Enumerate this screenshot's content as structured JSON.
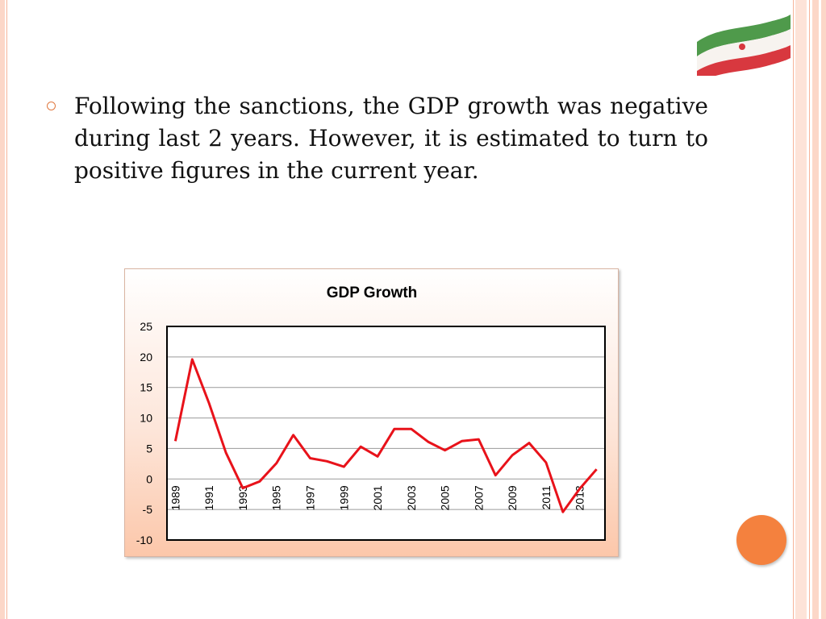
{
  "slide": {
    "bullet_text": "Following the sanctions, the GDP growth was negative during last 2 years. However, it is estimated to turn to positive figures in the current year."
  },
  "decor": {
    "flag_icon": "iran-flag-icon",
    "accent_color": "#f4813e",
    "bullet_color": "#e0783f"
  },
  "chart_data": {
    "type": "line",
    "title": "GDP Growth",
    "xlabel": "",
    "ylabel": "",
    "x": [
      1989,
      1990,
      1991,
      1992,
      1993,
      1994,
      1995,
      1996,
      1997,
      1998,
      1999,
      2000,
      2001,
      2002,
      2003,
      2004,
      2005,
      2006,
      2007,
      2008,
      2009,
      2010,
      2011,
      2012,
      2013,
      2014
    ],
    "x_tick_labels": [
      "1989",
      "1991",
      "1993",
      "1995",
      "1997",
      "1999",
      "2001",
      "2003",
      "2005",
      "2007",
      "2009",
      "2011",
      "2013"
    ],
    "series": [
      {
        "values": [
          6.2,
          19.6,
          12.4,
          4.3,
          -1.5,
          -0.4,
          2.6,
          7.2,
          3.4,
          2.9,
          2.0,
          5.3,
          3.7,
          8.2,
          8.2,
          6.1,
          4.7,
          6.2,
          6.5,
          0.6,
          3.9,
          5.9,
          2.7,
          -5.4,
          -1.6,
          1.6
        ],
        "color": "#e8121a"
      }
    ],
    "y_ticks": [
      -10,
      -5,
      0,
      5,
      10,
      15,
      20,
      25
    ],
    "ylim": [
      -10,
      25
    ],
    "grid": true,
    "legend": "none"
  }
}
